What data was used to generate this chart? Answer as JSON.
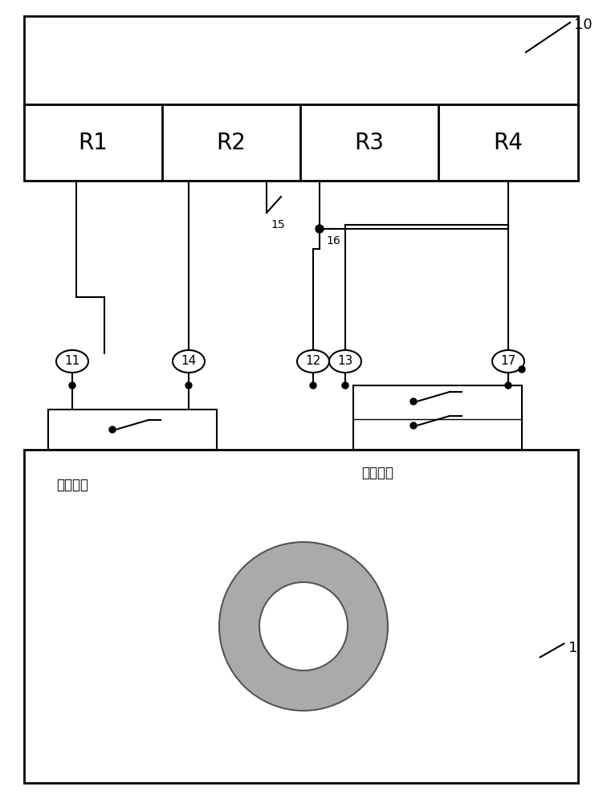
{
  "fig_width": 7.56,
  "fig_height": 10.0,
  "bg_color": "#ffffff",
  "line_color": "#000000",
  "gray_color": "#aaaaaa",
  "label_10": "10",
  "label_1": "1",
  "label_11": "11",
  "label_12": "12",
  "label_13": "13",
  "label_14": "14",
  "label_15": "15",
  "label_16": "16",
  "label_17": "17",
  "r_labels": [
    "R1",
    "R2",
    "R3",
    "R4"
  ],
  "text_switch": "开关控制",
  "text_capture": "拍摄控制"
}
